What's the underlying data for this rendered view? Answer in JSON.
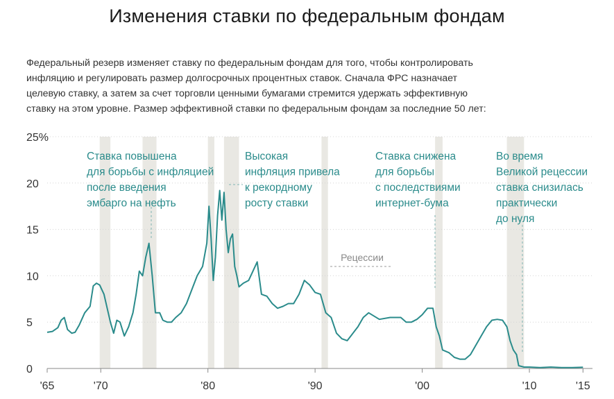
{
  "title": "Изменения ставки по федеральным фондам",
  "intro_lines": [
    "Федеральный резерв изменяет ставку по федеральным фондам для того, чтобы контролировать",
    "инфляцию и регулировать размер долгосрочных процентных ставок. Сначала ФРС назначает",
    "целевую ставку, а затем за счет торговли ценными бумагами стремится удержать эффективную",
    "ставку на этом уровне. Размер эффективной ставки по федеральным фондам за последние 50 лет:"
  ],
  "colors": {
    "line": "#2a8b8b",
    "recession": "#e9e8e3",
    "grid": "#d4d4d4",
    "annotation": "#2a8b8b"
  },
  "chart_data": {
    "type": "line",
    "title": "",
    "xlabel": "",
    "ylabel": "",
    "xlim": [
      1965,
      2015.5
    ],
    "ylim": [
      0,
      25
    ],
    "grid": true,
    "y_ticks": [
      {
        "value": 25,
        "label": "25%"
      },
      {
        "value": 20,
        "label": "20"
      },
      {
        "value": 15,
        "label": "15"
      },
      {
        "value": 10,
        "label": "10"
      },
      {
        "value": 5,
        "label": "5"
      },
      {
        "value": 0,
        "label": "0"
      }
    ],
    "x_ticks": [
      {
        "value": 1965,
        "label": "'65"
      },
      {
        "value": 1970,
        "label": "'70"
      },
      {
        "value": 1980,
        "label": "'80"
      },
      {
        "value": 1990,
        "label": "'90"
      },
      {
        "value": 2000,
        "label": "'00"
      },
      {
        "value": 2010,
        "label": "'10"
      },
      {
        "value": 2015,
        "label": "'15"
      }
    ],
    "recessions": [
      [
        1969.9,
        1970.9
      ],
      [
        1973.9,
        1975.2
      ],
      [
        1980.0,
        1980.6
      ],
      [
        1981.5,
        1982.9
      ],
      [
        1990.6,
        1991.2
      ],
      [
        2001.2,
        2001.9
      ],
      [
        2007.9,
        2009.5
      ]
    ],
    "recession_label": "Рецессии",
    "series": [
      {
        "x": [
          1965.0,
          1965.5,
          1966.0,
          1966.3,
          1966.6,
          1966.9,
          1967.3,
          1967.6,
          1968.0,
          1968.5,
          1969.0,
          1969.3,
          1969.6,
          1969.9,
          1970.3,
          1970.6,
          1970.9,
          1971.2,
          1971.5,
          1971.8,
          1972.2,
          1972.6,
          1973.0,
          1973.3,
          1973.6,
          1973.9,
          1974.2,
          1974.5,
          1974.8,
          1975.1,
          1975.5,
          1975.8,
          1976.2,
          1976.6,
          1977.0,
          1977.5,
          1978.0,
          1978.5,
          1979.0,
          1979.5,
          1979.9,
          1980.1,
          1980.3,
          1980.5,
          1980.7,
          1980.9,
          1981.1,
          1981.3,
          1981.5,
          1981.7,
          1981.9,
          1982.1,
          1982.3,
          1982.5,
          1982.7,
          1982.9,
          1983.3,
          1983.8,
          1984.2,
          1984.6,
          1985.0,
          1985.5,
          1986.0,
          1986.5,
          1987.0,
          1987.5,
          1988.0,
          1988.5,
          1989.0,
          1989.5,
          1990.0,
          1990.5,
          1991.0,
          1991.5,
          1992.0,
          1992.5,
          1993.0,
          1994.0,
          1994.5,
          1995.0,
          1996.0,
          1997.0,
          1998.0,
          1998.5,
          1999.0,
          1999.5,
          2000.0,
          2000.5,
          2001.0,
          2001.3,
          2001.6,
          2001.9,
          2002.5,
          2003.0,
          2003.5,
          2004.0,
          2004.5,
          2005.0,
          2005.5,
          2006.0,
          2006.5,
          2007.0,
          2007.5,
          2007.9,
          2008.2,
          2008.5,
          2008.8,
          2009.0,
          2009.5,
          2010.0,
          2011.0,
          2012.0,
          2013.0,
          2014.0,
          2015.0
        ],
        "values": [
          3.9,
          4.0,
          4.4,
          5.2,
          5.5,
          4.2,
          3.8,
          3.9,
          4.7,
          6.0,
          6.7,
          8.9,
          9.2,
          9.0,
          8.0,
          6.5,
          5.0,
          3.8,
          5.2,
          5.0,
          3.5,
          4.5,
          6.0,
          8.0,
          10.5,
          10.0,
          12.0,
          13.5,
          10.0,
          6.0,
          6.0,
          5.2,
          5.0,
          5.0,
          5.5,
          6.0,
          7.0,
          8.5,
          10.0,
          11.0,
          13.5,
          17.5,
          14.0,
          9.5,
          12.0,
          16.5,
          19.2,
          16.0,
          19.0,
          15.0,
          12.5,
          14.0,
          14.5,
          11.0,
          10.0,
          8.8,
          9.2,
          9.5,
          10.5,
          11.5,
          8.0,
          7.8,
          7.0,
          6.5,
          6.7,
          7.0,
          7.0,
          8.0,
          9.5,
          9.0,
          8.2,
          8.0,
          6.0,
          5.5,
          3.8,
          3.2,
          3.0,
          4.5,
          5.5,
          6.0,
          5.3,
          5.5,
          5.5,
          5.0,
          5.0,
          5.3,
          5.8,
          6.5,
          6.5,
          4.5,
          3.5,
          2.0,
          1.7,
          1.2,
          1.0,
          1.0,
          1.5,
          2.5,
          3.5,
          4.5,
          5.2,
          5.3,
          5.2,
          4.5,
          3.0,
          2.0,
          1.5,
          0.3,
          0.15,
          0.15,
          0.1,
          0.15,
          0.1,
          0.1,
          0.13
        ]
      }
    ],
    "annotations": [
      {
        "lines": [
          "Ставка повышена",
          "для борьбы с инфляцией",
          "после введения",
          "эмбарго на нефть"
        ]
      },
      {
        "lines": [
          "Высокая",
          "инфляция привела",
          "к рекордному",
          "росту ставки"
        ]
      },
      {
        "lines": [
          "Ставка снижена",
          "для борьбы",
          "с последствиями",
          "интернет-бума"
        ]
      },
      {
        "lines": [
          "Во время",
          "Великой рецессии",
          "ставка снизилась",
          "практически",
          "до нуля"
        ]
      }
    ]
  }
}
